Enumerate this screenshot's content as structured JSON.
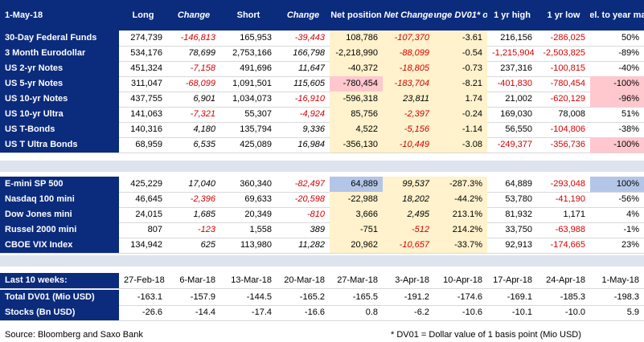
{
  "header": {
    "date": "1-May-18",
    "long": "Long",
    "change": "Change",
    "short": "Short",
    "change2": "Change",
    "net_position": "Net position",
    "net_change": "Net Change",
    "change_dv01": "Change DV01* or %",
    "yr_high": "1 yr high",
    "yr_low": "1 yr low",
    "rel": "Rel. to year max"
  },
  "rates": [
    {
      "name": "30-Day Federal Funds",
      "long": "274,739",
      "change": "-146,813",
      "short": "165,953",
      "change2": "-39,443",
      "net": "108,786",
      "netchg": "-107,370",
      "dv": "-3.61",
      "high": "216,156",
      "low": "-286,025",
      "rel": "50%"
    },
    {
      "name": "3 Month Eurodollar",
      "long": "534,176",
      "change": "78,699",
      "short": "2,753,166",
      "change2": "166,798",
      "net": "-2,218,990",
      "netchg": "-88,099",
      "dv": "-0.54",
      "high": "-1,215,904",
      "low": "-2,503,825",
      "rel": "-89%"
    },
    {
      "name": "US 2-yr Notes",
      "long": "451,324",
      "change": "-7,158",
      "short": "491,696",
      "change2": "11,647",
      "net": "-40,372",
      "netchg": "-18,805",
      "dv": "-0.73",
      "high": "237,316",
      "low": "-100,815",
      "rel": "-40%"
    },
    {
      "name": "US 5-yr Notes",
      "long": "311,047",
      "change": "-68,099",
      "short": "1,091,501",
      "change2": "115,605",
      "net": "-780,454",
      "netchg": "-183,704",
      "dv": "-8.21",
      "high": "-401,830",
      "low": "-780,454",
      "rel": "-100%"
    },
    {
      "name": "US 10-yr Notes",
      "long": "437,755",
      "change": "6,901",
      "short": "1,034,073",
      "change2": "-16,910",
      "net": "-596,318",
      "netchg": "23,811",
      "dv": "1.74",
      "high": "21,002",
      "low": "-620,129",
      "rel": "-96%"
    },
    {
      "name": "US 10-yr Ultra",
      "long": "141,063",
      "change": "-7,321",
      "short": "55,307",
      "change2": "-4,924",
      "net": "85,756",
      "netchg": "-2,397",
      "dv": "-0.24",
      "high": "169,030",
      "low": "78,008",
      "rel": "51%"
    },
    {
      "name": "US T-Bonds",
      "long": "140,316",
      "change": "4,180",
      "short": "135,794",
      "change2": "9,336",
      "net": "4,522",
      "netchg": "-5,156",
      "dv": "-1.14",
      "high": "56,550",
      "low": "-104,806",
      "rel": "-38%"
    },
    {
      "name": "US T Ultra Bonds",
      "long": "68,959",
      "change": "6,535",
      "short": "425,089",
      "change2": "16,984",
      "net": "-356,130",
      "netchg": "-10,449",
      "dv": "-3.08",
      "high": "-249,377",
      "low": "-356,736",
      "rel": "-100%"
    }
  ],
  "equities": [
    {
      "name": "E-mini SP 500",
      "long": "425,229",
      "change": "17,040",
      "short": "360,340",
      "change2": "-82,497",
      "net": "64,889",
      "netchg": "99,537",
      "dv": "-287.3%",
      "high": "64,889",
      "low": "-293,048",
      "rel": "100%"
    },
    {
      "name": "Nasdaq 100 mini",
      "long": "46,645",
      "change": "-2,396",
      "short": "69,633",
      "change2": "-20,598",
      "net": "-22,988",
      "netchg": "18,202",
      "dv": "-44.2%",
      "high": "53,780",
      "low": "-41,190",
      "rel": "-56%"
    },
    {
      "name": "Dow Jones mini",
      "long": "24,015",
      "change": "1,685",
      "short": "20,349",
      "change2": "-810",
      "net": "3,666",
      "netchg": "2,495",
      "dv": "213.1%",
      "high": "81,932",
      "low": "1,171",
      "rel": "4%"
    },
    {
      "name": "Russel 2000 mini",
      "long": "807",
      "change": "-123",
      "short": "1,558",
      "change2": "389",
      "net": "-751",
      "netchg": "-512",
      "dv": "214.2%",
      "high": "33,750",
      "low": "-63,988",
      "rel": "-1%"
    },
    {
      "name": "CBOE VIX Index",
      "long": "134,942",
      "change": "625",
      "short": "113,980",
      "change2": "11,282",
      "net": "20,962",
      "netchg": "-10,657",
      "dv": "-33.7%",
      "high": "92,913",
      "low": "-174,665",
      "rel": "23%"
    }
  ],
  "weeks": {
    "label": "Last 10 weeks:",
    "dates": [
      "27-Feb-18",
      "6-Mar-18",
      "13-Mar-18",
      "20-Mar-18",
      "27-Mar-18",
      "3-Apr-18",
      "10-Apr-18",
      "17-Apr-18",
      "24-Apr-18",
      "1-May-18"
    ],
    "rows": [
      {
        "name": "Total DV01 (Mio USD)",
        "values": [
          "-163.1",
          "-157.9",
          "-144.5",
          "-165.2",
          "-165.5",
          "-191.2",
          "-174.6",
          "-169.1",
          "-185.3",
          "-198.3"
        ]
      },
      {
        "name": "Stocks (Bn USD)",
        "values": [
          "-26.6",
          "-14.4",
          "-17.4",
          "-16.6",
          "0.8",
          "-6.2",
          "-10.6",
          "-10.1",
          "-10.0",
          "5.9"
        ]
      }
    ]
  },
  "footer": {
    "source": "Source: Bloomberg and Saxo Bank",
    "note": "* DV01 = Dollar value of 1 basis point  (Mio USD)"
  }
}
